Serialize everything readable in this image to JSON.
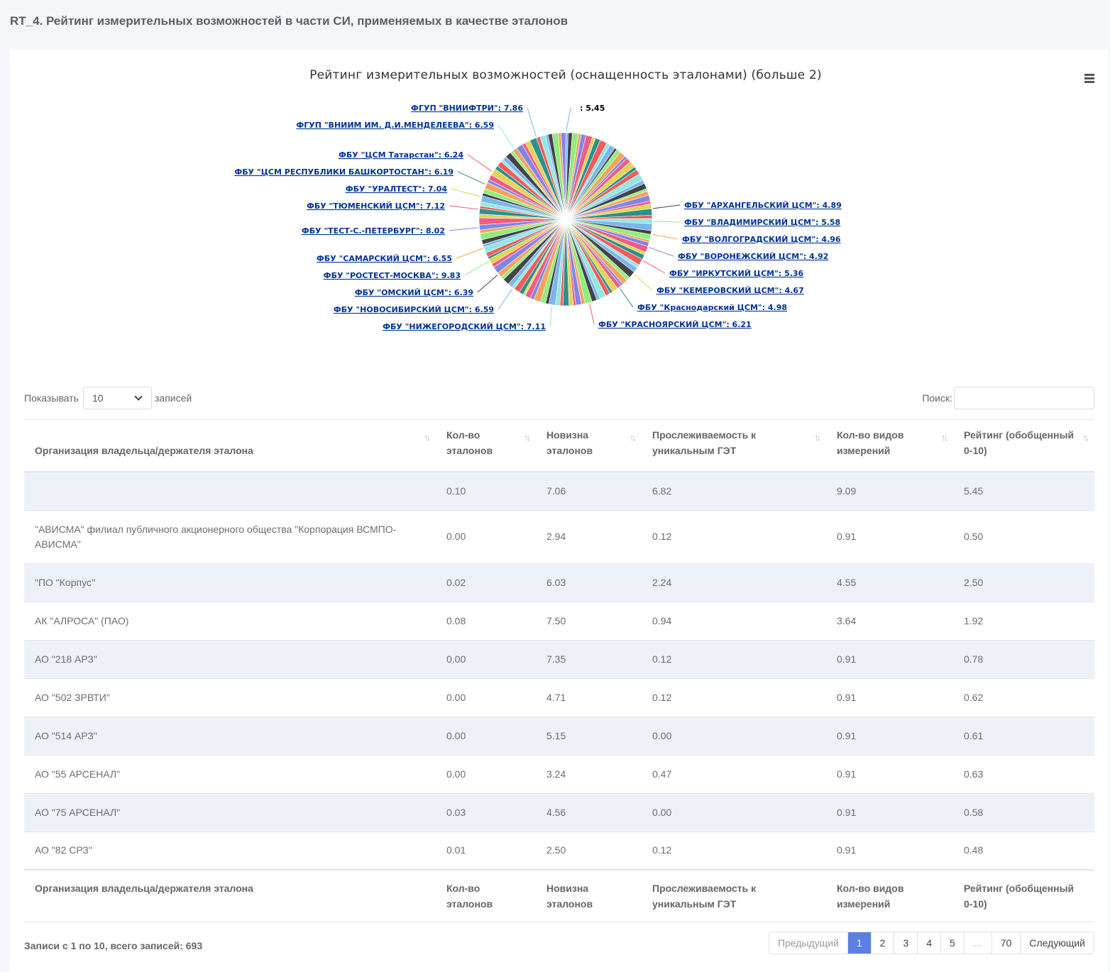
{
  "page": {
    "title": "RT_4. Рейтинг измерительных возможностей в части СИ, применяемых в качестве эталонов"
  },
  "chart_data": {
    "type": "pie",
    "title": "Рейтинг измерительных возможностей (оснащенность эталонами) (больше 2)",
    "labeled_slices": [
      {
        "name": "",
        "value": 5.45
      },
      {
        "name": "ФБУ \"АРХАНГЕЛЬСКИЙ ЦСМ\"",
        "value": 4.89
      },
      {
        "name": "ФБУ \"ВЛАДИМИРСКИЙ ЦСМ\"",
        "value": 5.58
      },
      {
        "name": "ФБУ \"ВОЛГОГРАДСКИЙ ЦСМ\"",
        "value": 4.96
      },
      {
        "name": "ФБУ \"ВОРОНЕЖСКИЙ ЦСМ\"",
        "value": 4.92
      },
      {
        "name": "ФБУ \"ИРКУТСКИЙ ЦСМ\"",
        "value": 5.36
      },
      {
        "name": "ФБУ \"КЕМЕРОВСКИЙ ЦСМ\"",
        "value": 4.67
      },
      {
        "name": "ФБУ \"Краснодарский ЦСМ\"",
        "value": 4.98
      },
      {
        "name": "ФБУ \"КРАСНОЯРСКИЙ ЦСМ\"",
        "value": 6.21
      },
      {
        "name": "ФБУ \"НИЖЕГОРОДСКИЙ ЦСМ\"",
        "value": 7.11
      },
      {
        "name": "ФБУ \"НОВОСИБИРСКИЙ ЦСМ\"",
        "value": 6.59
      },
      {
        "name": "ФБУ \"ОМСКИЙ ЦСМ\"",
        "value": 6.39
      },
      {
        "name": "ФБУ \"РОСТЕСТ-МОСКВА\"",
        "value": 9.83
      },
      {
        "name": "ФБУ \"САМАРСКИЙ ЦСМ\"",
        "value": 6.55
      },
      {
        "name": "ФБУ \"ТЕСТ-С.-ПЕТЕРБУРГ\"",
        "value": 8.02
      },
      {
        "name": "ФБУ \"ТЮМЕНСКИЙ ЦСМ\"",
        "value": 7.12
      },
      {
        "name": "ФБУ \"УРАЛТЕСТ\"",
        "value": 7.04
      },
      {
        "name": "ФБУ \"ЦСМ РЕСПУБЛИКИ БАШКОРТОСТАН\"",
        "value": 6.19
      },
      {
        "name": "ФБУ \"ЦСМ Татарстан\"",
        "value": 6.24
      },
      {
        "name": "ФГУП \"ВНИИМ ИМ. Д.И.МЕНДЕЛЕЕВА\"",
        "value": 6.59
      },
      {
        "name": "ФГУП \"ВНИИФТРИ\"",
        "value": 7.86
      }
    ],
    "palette": [
      "#7cb5ec",
      "#434348",
      "#90ed7d",
      "#f7a35c",
      "#8085e9",
      "#f15c80",
      "#e4d354",
      "#2b908f",
      "#f45b5b",
      "#91e8e1"
    ]
  },
  "controls": {
    "show_label": "Показывать",
    "page_size": "10",
    "records_label": "записей",
    "search_label": "Поиск:"
  },
  "table": {
    "headers": [
      "Организация владельца/держателя эталона",
      "Кол-во эталонов",
      "Новизна эталонов",
      "Прослеживаемость к уникальным ГЭТ",
      "Кол-во видов измерений",
      "Рейтинг (обобщенный 0-10)"
    ],
    "rows": [
      [
        "",
        "0.10",
        "7.06",
        "6.82",
        "9.09",
        "5.45"
      ],
      [
        "\"АВИСМА\" филиал публичного акционерного общества \"Корпорация ВСМПО-АВИСМА\"",
        "0.00",
        "2.94",
        "0.12",
        "0.91",
        "0.50"
      ],
      [
        "\"ПО \"Корпус\"",
        "0.02",
        "6.03",
        "2.24",
        "4.55",
        "2.50"
      ],
      [
        "АК \"АЛРОСА\" (ПАО)",
        "0.08",
        "7.50",
        "0.94",
        "3.64",
        "1.92"
      ],
      [
        "АО \"218 АРЗ\"",
        "0.00",
        "7.35",
        "0.12",
        "0.91",
        "0.78"
      ],
      [
        "АО \"502 ЗРВТИ\"",
        "0.00",
        "4.71",
        "0.12",
        "0.91",
        "0.62"
      ],
      [
        "АО \"514 АРЗ\"",
        "0.00",
        "5.15",
        "0.00",
        "0.91",
        "0.61"
      ],
      [
        "АО \"55 АРСЕНАЛ\"",
        "0.00",
        "3.24",
        "0.47",
        "0.91",
        "0.63"
      ],
      [
        "АО \"75 АРСЕНАЛ\"",
        "0.03",
        "4.56",
        "0.00",
        "0.91",
        "0.58"
      ],
      [
        "АО \"82 СРЗ\"",
        "0.01",
        "2.50",
        "0.12",
        "0.91",
        "0.48"
      ]
    ]
  },
  "footer": {
    "info": "Записи с 1 по 10, всего записей: 693",
    "pagination": {
      "prev": "Предыдущий",
      "pages": [
        "1",
        "2",
        "3",
        "4",
        "5",
        "…",
        "70"
      ],
      "next": "Следующий",
      "active": "1"
    }
  }
}
